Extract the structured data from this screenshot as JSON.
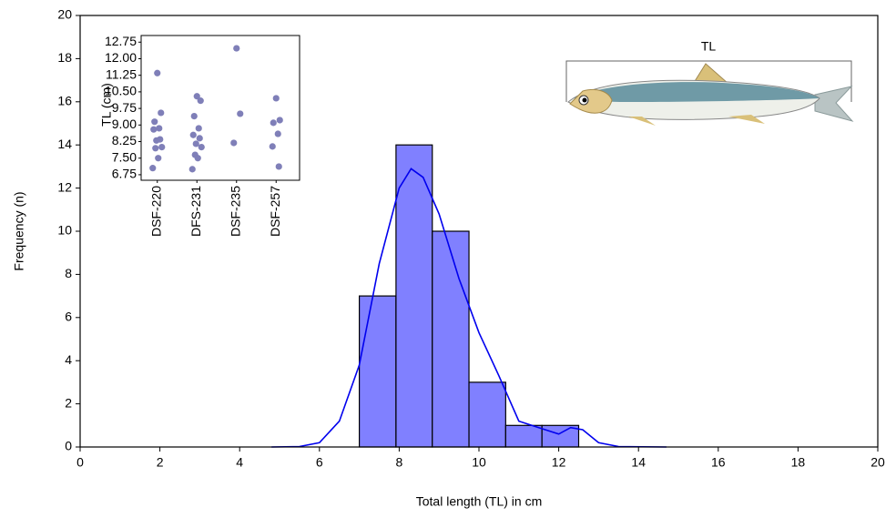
{
  "chart_data": [
    {
      "type": "histogram",
      "xlabel": "Total length (TL) in cm",
      "ylabel": "Frequency (n)",
      "bins": [
        7.0,
        7.92,
        8.83,
        9.75,
        10.67,
        11.58,
        12.5
      ],
      "values": [
        7,
        14,
        10,
        3,
        1,
        1
      ],
      "color": "#8080ff",
      "edgecolor": "#000000",
      "line": {
        "color": "#0000ee",
        "x": [
          4.8,
          5.5,
          6.0,
          6.5,
          7.0,
          7.5,
          8.0,
          8.3,
          8.6,
          9.0,
          9.5,
          10.0,
          10.5,
          11.0,
          11.5,
          12.0,
          12.3,
          12.6,
          13.0,
          13.5,
          14.7
        ],
        "values": [
          0,
          0.02,
          0.2,
          1.2,
          3.8,
          8.5,
          12.0,
          12.9,
          12.5,
          10.8,
          7.8,
          5.3,
          3.3,
          1.2,
          0.9,
          0.6,
          0.9,
          0.8,
          0.2,
          0.02,
          0
        ]
      },
      "xlim": [
        0,
        20
      ],
      "xticks": [
        0,
        2,
        4,
        6,
        8,
        10,
        12,
        14,
        16,
        18,
        20
      ],
      "ylim": [
        0,
        20
      ],
      "yticks": [
        0,
        2,
        4,
        6,
        8,
        10,
        12,
        14,
        16,
        18,
        20
      ],
      "annotations": [
        "TL"
      ]
    },
    {
      "type": "strip",
      "ylabel": "TL (cm)",
      "color": "#7f7fb8",
      "categories": [
        "DSF-220",
        "DFS-231",
        "DSF-235",
        "DSF-257"
      ],
      "values": [
        [
          11.35,
          9.55,
          9.15,
          8.85,
          8.8,
          8.35,
          8.3,
          8.0,
          7.95,
          7.5,
          7.05
        ],
        [
          10.3,
          10.1,
          9.4,
          8.85,
          8.55,
          8.4,
          8.15,
          8.0,
          7.65,
          7.5,
          7.0
        ],
        [
          12.47,
          9.51,
          8.19
        ],
        [
          10.21,
          9.22,
          9.1,
          8.6,
          8.03,
          7.12
        ]
      ],
      "ylim": [
        6.5,
        13.05
      ],
      "yticks": [
        6.75,
        {
          "value": 7.5,
          "label": "7.50"
        },
        8.25,
        {
          "value": 9,
          "label": "9.00"
        },
        9.75,
        {
          "value": 10.5,
          "label": "10.50"
        },
        11.25,
        {
          "value": 12,
          "label": "12.00"
        },
        12.75
      ]
    }
  ]
}
